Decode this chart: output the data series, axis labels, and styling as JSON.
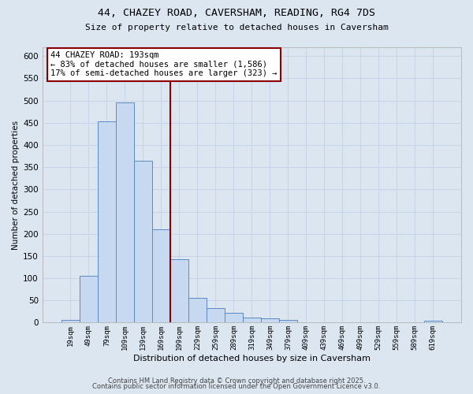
{
  "title_line1": "44, CHAZEY ROAD, CAVERSHAM, READING, RG4 7DS",
  "title_line2": "Size of property relative to detached houses in Caversham",
  "xlabel": "Distribution of detached houses by size in Caversham",
  "ylabel": "Number of detached properties",
  "bar_labels": [
    "19sqm",
    "49sqm",
    "79sqm",
    "109sqm",
    "139sqm",
    "169sqm",
    "199sqm",
    "229sqm",
    "259sqm",
    "289sqm",
    "319sqm",
    "349sqm",
    "379sqm",
    "409sqm",
    "439sqm",
    "469sqm",
    "499sqm",
    "529sqm",
    "559sqm",
    "589sqm",
    "619sqm"
  ],
  "bar_values": [
    6,
    105,
    453,
    495,
    365,
    210,
    143,
    55,
    33,
    22,
    12,
    10,
    6,
    0,
    0,
    0,
    0,
    0,
    0,
    0,
    4
  ],
  "bar_color": "#c6d9f1",
  "bar_edge_color": "#5b8ac5",
  "grid_color": "#c8d4e8",
  "background_color": "#dce6f1",
  "vline_color": "#8B0000",
  "vline_index": 5.5,
  "annotation_text_line1": "44 CHAZEY ROAD: 193sqm",
  "annotation_text_line2": "← 83% of detached houses are smaller (1,586)",
  "annotation_text_line3": "17% of semi-detached houses are larger (323) →",
  "annotation_box_facecolor": "white",
  "annotation_box_edgecolor": "#8B0000",
  "ylim": [
    0,
    620
  ],
  "yticks": [
    0,
    50,
    100,
    150,
    200,
    250,
    300,
    350,
    400,
    450,
    500,
    550,
    600
  ],
  "footnote1": "Contains HM Land Registry data © Crown copyright and database right 2025.",
  "footnote2": "Contains public sector information licensed under the Open Government Licence v3.0."
}
